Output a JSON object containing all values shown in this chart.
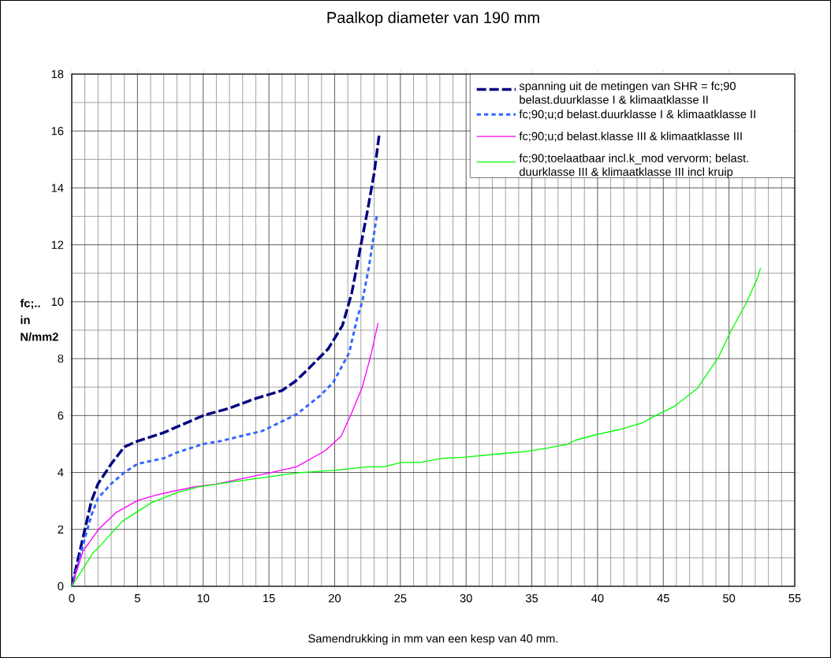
{
  "chart_data": {
    "type": "line",
    "title": "Paalkop diameter van 190 mm",
    "xlabel": "Samendrukking in mm  van een kesp van 40 mm.",
    "ylabel": "fc;.. in N/mm2",
    "xlim": [
      0,
      55
    ],
    "ylim": [
      0,
      18
    ],
    "xticks": [
      0,
      5,
      10,
      15,
      20,
      25,
      30,
      35,
      40,
      45,
      50,
      55
    ],
    "yticks": [
      0,
      2,
      4,
      6,
      8,
      10,
      12,
      14,
      16,
      18
    ],
    "grid": true,
    "legend": "top right",
    "series": [
      {
        "name": "spanning uit de metingen van SHR = fc;90 belast.duurklasse I & klimaatklasse II",
        "color": "#000080",
        "line_style": "dashed",
        "x": [
          0,
          0.5,
          1,
          1.5,
          2,
          3,
          4,
          5,
          7,
          9,
          10,
          12,
          14,
          16,
          17,
          18,
          19.5,
          20.6,
          21.3,
          22,
          22.5,
          23,
          23.4
        ],
        "values": [
          0,
          1.0,
          2.0,
          3.0,
          3.6,
          4.3,
          4.9,
          5.1,
          5.4,
          5.8,
          6.0,
          6.26,
          6.6,
          6.88,
          7.2,
          7.64,
          8.34,
          9.17,
          10.3,
          12.0,
          13.2,
          14.5,
          15.9
        ]
      },
      {
        "name": "fc;90;u;d belast.duurklasse I & klimaatklasse II",
        "color": "#3366ff",
        "line_style": "dotted",
        "x": [
          0,
          0.5,
          1,
          1.5,
          2,
          3,
          4,
          5,
          7,
          8,
          10,
          11.3,
          14.5,
          17.1,
          18.9,
          19.9,
          21.1,
          21.7,
          22.1,
          22.6,
          23.2
        ],
        "values": [
          0,
          0.8,
          1.7,
          2.5,
          3.1,
          3.6,
          4.0,
          4.3,
          4.5,
          4.7,
          5.0,
          5.1,
          5.46,
          6.04,
          6.7,
          7.17,
          8.2,
          9.4,
          10.0,
          11.2,
          13.0
        ]
      },
      {
        "name": "fc;90;u;d belast.klasse III & klimaatklasse III",
        "color": "#ff00ff",
        "line_style": "solid",
        "x": [
          0,
          0.84,
          2.04,
          3.4,
          5.04,
          6.4,
          7.6,
          9.4,
          10.9,
          15.1,
          17.1,
          19.3,
          20.5,
          21.3,
          22.1,
          22.8,
          23.3
        ],
        "values": [
          0,
          1.22,
          2.0,
          2.6,
          3.02,
          3.2,
          3.33,
          3.5,
          3.58,
          3.99,
          4.2,
          4.77,
          5.28,
          6.1,
          7.0,
          8.2,
          9.25
        ]
      },
      {
        "name": "fc;90;toelaatbaar incl.k_mod vervorm; belast. duurklasse III & klimaatklasse III incl kruip",
        "color": "#00ff00",
        "line_style": "solid",
        "x": [
          0,
          1.62,
          2.22,
          3.84,
          6.04,
          8.04,
          9.64,
          11.6,
          17.3,
          20.1,
          22.5,
          23.7,
          25.1,
          26.5,
          28.1,
          29.9,
          33.1,
          34.5,
          36.1,
          37.7,
          38.3,
          39.9,
          41.7,
          43.4,
          44.2,
          45.9,
          47.6,
          49.2,
          50.1,
          51.3,
          52.2,
          52.4
        ],
        "values": [
          0,
          1.17,
          1.45,
          2.28,
          2.93,
          3.3,
          3.49,
          3.63,
          3.99,
          4.08,
          4.2,
          4.2,
          4.35,
          4.35,
          4.49,
          4.54,
          4.68,
          4.73,
          4.85,
          4.99,
          5.13,
          5.33,
          5.51,
          5.74,
          5.95,
          6.34,
          6.96,
          8.05,
          8.93,
          9.94,
          10.87,
          11.19
        ]
      }
    ]
  }
}
